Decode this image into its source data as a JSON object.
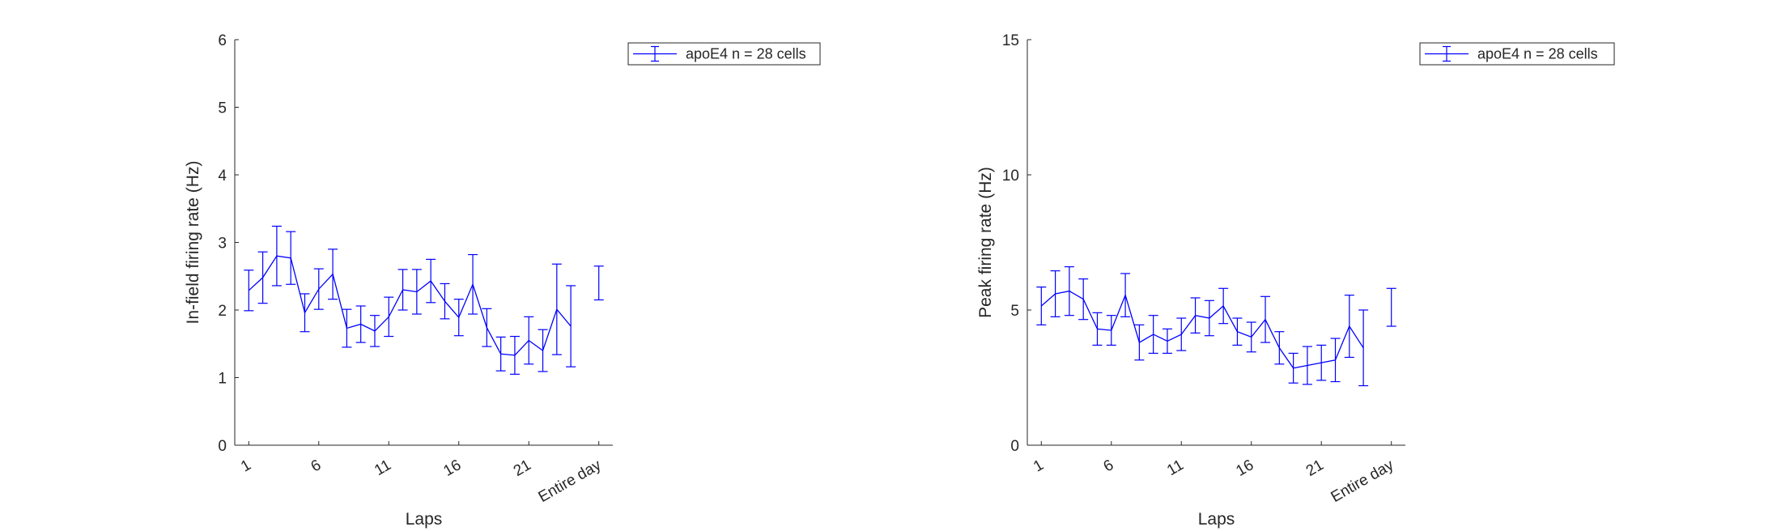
{
  "colors": {
    "series": "#0000ff",
    "axis": "#262626",
    "background": "#ffffff"
  },
  "chart_data": [
    {
      "type": "line",
      "error_bars": true,
      "xlabel": "Laps",
      "ylabel": "In-field firing rate (Hz)",
      "ylim": [
        0,
        6
      ],
      "yticks": [
        0,
        1,
        2,
        3,
        4,
        5,
        6
      ],
      "xticks": [
        "1",
        "6",
        "11",
        "16",
        "21",
        "Entire day"
      ],
      "legend_position": "top-right",
      "grid": false,
      "series": [
        {
          "name": "apoE4 n = 28 cells",
          "x": [
            1,
            2,
            3,
            4,
            5,
            6,
            7,
            8,
            9,
            10,
            11,
            12,
            13,
            14,
            15,
            16,
            17,
            18,
            19,
            20,
            21,
            22,
            23,
            24
          ],
          "y": [
            2.29,
            2.48,
            2.8,
            2.77,
            1.96,
            2.31,
            2.53,
            1.73,
            1.79,
            1.69,
            1.9,
            2.3,
            2.27,
            2.43,
            2.13,
            1.89,
            2.38,
            1.74,
            1.35,
            1.33,
            1.55,
            1.4,
            2.01,
            1.76
          ],
          "err": [
            0.3,
            0.38,
            0.44,
            0.39,
            0.28,
            0.3,
            0.37,
            0.28,
            0.27,
            0.23,
            0.29,
            0.3,
            0.33,
            0.32,
            0.26,
            0.27,
            0.44,
            0.28,
            0.25,
            0.28,
            0.35,
            0.31,
            0.67,
            0.6
          ]
        }
      ],
      "entire_day": {
        "label": "Entire day",
        "y": 2.4,
        "err": 0.25
      }
    },
    {
      "type": "line",
      "error_bars": true,
      "xlabel": "Laps",
      "ylabel": "Peak firing rate (Hz)",
      "ylim": [
        0,
        15
      ],
      "yticks": [
        0,
        5,
        10,
        15
      ],
      "xticks": [
        "1",
        "6",
        "11",
        "16",
        "21",
        "Entire day"
      ],
      "legend_position": "top-right",
      "grid": false,
      "series": [
        {
          "name": "apoE4 n = 28 cells",
          "x": [
            1,
            2,
            3,
            4,
            5,
            6,
            7,
            8,
            9,
            10,
            11,
            12,
            13,
            14,
            15,
            16,
            17,
            18,
            19,
            20,
            21,
            22,
            23,
            24
          ],
          "y": [
            5.15,
            5.6,
            5.7,
            5.4,
            4.3,
            4.25,
            5.55,
            3.8,
            4.1,
            3.85,
            4.1,
            4.8,
            4.7,
            5.15,
            4.2,
            4.0,
            4.65,
            3.6,
            2.85,
            2.95,
            3.05,
            3.15,
            4.4,
            3.6
          ],
          "err": [
            0.7,
            0.85,
            0.9,
            0.75,
            0.6,
            0.55,
            0.8,
            0.65,
            0.7,
            0.45,
            0.6,
            0.65,
            0.65,
            0.65,
            0.5,
            0.55,
            0.85,
            0.6,
            0.55,
            0.7,
            0.65,
            0.8,
            1.15,
            1.4
          ]
        }
      ],
      "entire_day": {
        "label": "Entire day",
        "y": 5.1,
        "err": 0.7
      }
    }
  ]
}
